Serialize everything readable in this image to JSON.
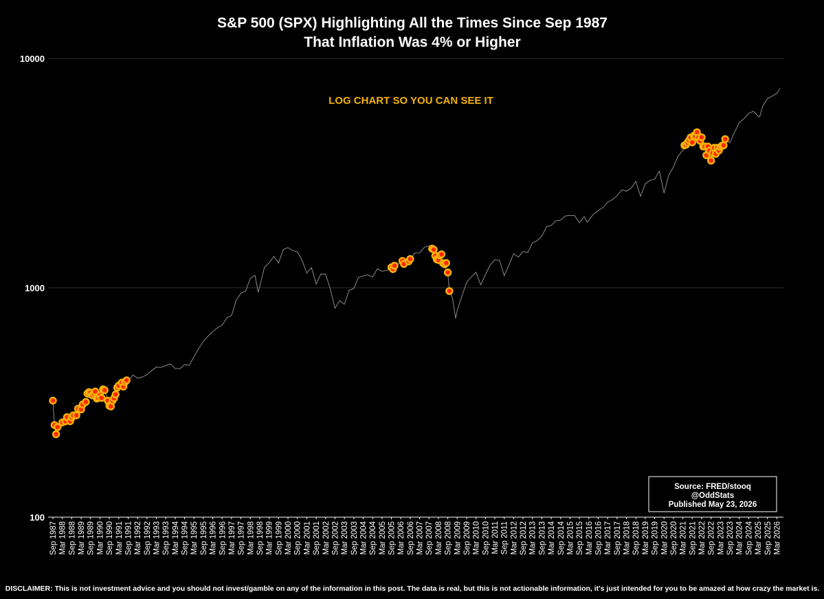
{
  "chart_data": {
    "type": "line",
    "title": "S&P 500 (SPX) Highlighting All the Times Since Sep 1987 That Inflation Was 4% or Higher",
    "title_lines": [
      "S&P 500 (SPX) Highlighting All the Times Since Sep 1987",
      "That Inflation Was 4% or Higher"
    ],
    "annotation": "LOG CHART SO YOU CAN SEE IT",
    "y_scale": "log",
    "ylim": [
      100,
      10000
    ],
    "yticks": [
      {
        "value": 100,
        "label": "100"
      },
      {
        "value": 1000,
        "label": "1000"
      },
      {
        "value": 10000,
        "label": "10000"
      }
    ],
    "grid": "horizontal",
    "xtick_labels": [
      "Sep 1987",
      "Mar 1988",
      "Sep 1988",
      "Mar 1989",
      "Sep 1989",
      "Mar 1990",
      "Sep 1990",
      "Mar 1991",
      "Sep 1991",
      "Mar 1992",
      "Sep 1992",
      "Mar 1993",
      "Sep 1993",
      "Mar 1994",
      "Sep 1994",
      "Mar 1995",
      "Sep 1995",
      "Mar 1996",
      "Sep 1996",
      "Mar 1997",
      "Sep 1997",
      "Mar 1998",
      "Sep 1998",
      "Mar 1999",
      "Sep 1999",
      "Mar 2000",
      "Sep 2000",
      "Mar 2001",
      "Sep 2001",
      "Mar 2002",
      "Sep 2002",
      "Mar 2003",
      "Sep 2003",
      "Mar 2004",
      "Sep 2004",
      "Mar 2005",
      "Sep 2005",
      "Mar 2006",
      "Sep 2006",
      "Mar 2007",
      "Sep 2007",
      "Mar 2008",
      "Sep 2008",
      "Mar 2009",
      "Sep 2009",
      "Mar 2010",
      "Sep 2010",
      "Mar 2011",
      "Sep 2011",
      "Mar 2012",
      "Sep 2012",
      "Mar 2013",
      "Sep 2013",
      "Mar 2014",
      "Sep 2014",
      "Mar 2015",
      "Sep 2015",
      "Mar 2016",
      "Sep 2016",
      "Mar 2017",
      "Sep 2017",
      "Mar 2018",
      "Sep 2018",
      "Mar 2019",
      "Sep 2019",
      "Mar 2020",
      "Sep 2020",
      "Mar 2021",
      "Sep 2021",
      "Mar 2022",
      "Sep 2022",
      "Mar 2023",
      "Sep 2023",
      "Mar 2024",
      "Sep 2024",
      "Mar 2025",
      "Sep 2025",
      "Mar 2026"
    ],
    "x_start": "Sep 1987",
    "x_end": "May 2026",
    "series": [
      {
        "color": "#8a8a8a",
        "points": [
          [
            "1987-09",
            322
          ],
          [
            "1987-10",
            252
          ],
          [
            "1987-11",
            230
          ],
          [
            "1987-12",
            247
          ],
          [
            "1988-03",
            259
          ],
          [
            "1988-06",
            273
          ],
          [
            "1988-09",
            272
          ],
          [
            "1988-12",
            278
          ],
          [
            "1989-03",
            295
          ],
          [
            "1989-06",
            318
          ],
          [
            "1989-09",
            349
          ],
          [
            "1989-12",
            353
          ],
          [
            "1990-03",
            340
          ],
          [
            "1990-06",
            358
          ],
          [
            "1990-09",
            306
          ],
          [
            "1990-12",
            330
          ],
          [
            "1991-03",
            375
          ],
          [
            "1991-06",
            371
          ],
          [
            "1991-09",
            388
          ],
          [
            "1991-12",
            417
          ],
          [
            "1992-03",
            404
          ],
          [
            "1992-06",
            408
          ],
          [
            "1992-09",
            418
          ],
          [
            "1992-12",
            436
          ],
          [
            "1993-03",
            451
          ],
          [
            "1993-06",
            450
          ],
          [
            "1993-09",
            458
          ],
          [
            "1993-12",
            466
          ],
          [
            "1994-03",
            445
          ],
          [
            "1994-06",
            444
          ],
          [
            "1994-09",
            462
          ],
          [
            "1994-12",
            459
          ],
          [
            "1995-03",
            500
          ],
          [
            "1995-06",
            544
          ],
          [
            "1995-09",
            584
          ],
          [
            "1995-12",
            615
          ],
          [
            "1996-03",
            645
          ],
          [
            "1996-06",
            670
          ],
          [
            "1996-09",
            687
          ],
          [
            "1996-12",
            740
          ],
          [
            "1997-03",
            757
          ],
          [
            "1997-06",
            885
          ],
          [
            "1997-09",
            947
          ],
          [
            "1997-12",
            970
          ],
          [
            "1998-03",
            1101
          ],
          [
            "1998-06",
            1133
          ],
          [
            "1998-08",
            957
          ],
          [
            "1998-09",
            1017
          ],
          [
            "1998-12",
            1229
          ],
          [
            "1999-03",
            1286
          ],
          [
            "1999-06",
            1372
          ],
          [
            "1999-09",
            1282
          ],
          [
            "1999-12",
            1469
          ],
          [
            "2000-03",
            1498
          ],
          [
            "2000-06",
            1454
          ],
          [
            "2000-09",
            1436
          ],
          [
            "2000-12",
            1320
          ],
          [
            "2001-03",
            1160
          ],
          [
            "2001-06",
            1224
          ],
          [
            "2001-09",
            1040
          ],
          [
            "2001-12",
            1148
          ],
          [
            "2002-03",
            1147
          ],
          [
            "2002-06",
            989
          ],
          [
            "2002-09",
            815
          ],
          [
            "2002-12",
            879
          ],
          [
            "2003-03",
            848
          ],
          [
            "2003-06",
            974
          ],
          [
            "2003-09",
            995
          ],
          [
            "2003-12",
            1111
          ],
          [
            "2004-03",
            1126
          ],
          [
            "2004-06",
            1140
          ],
          [
            "2004-09",
            1114
          ],
          [
            "2004-12",
            1211
          ],
          [
            "2005-03",
            1180
          ],
          [
            "2005-06",
            1191
          ],
          [
            "2005-09",
            1228
          ],
          [
            "2005-12",
            1248
          ],
          [
            "2006-03",
            1294
          ],
          [
            "2006-06",
            1270
          ],
          [
            "2006-09",
            1335
          ],
          [
            "2006-12",
            1418
          ],
          [
            "2007-03",
            1420
          ],
          [
            "2007-06",
            1503
          ],
          [
            "2007-09",
            1526
          ],
          [
            "2007-12",
            1468
          ],
          [
            "2008-03",
            1322
          ],
          [
            "2008-06",
            1280
          ],
          [
            "2008-09",
            1166
          ],
          [
            "2008-10",
            968
          ],
          [
            "2008-12",
            903
          ],
          [
            "2009-02",
            735
          ],
          [
            "2009-03",
            797
          ],
          [
            "2009-06",
            919
          ],
          [
            "2009-09",
            1057
          ],
          [
            "2009-12",
            1115
          ],
          [
            "2010-03",
            1169
          ],
          [
            "2010-06",
            1030
          ],
          [
            "2010-09",
            1141
          ],
          [
            "2010-12",
            1257
          ],
          [
            "2011-03",
            1325
          ],
          [
            "2011-06",
            1320
          ],
          [
            "2011-09",
            1131
          ],
          [
            "2011-12",
            1257
          ],
          [
            "2012-03",
            1408
          ],
          [
            "2012-06",
            1362
          ],
          [
            "2012-09",
            1440
          ],
          [
            "2012-12",
            1426
          ],
          [
            "2013-03",
            1569
          ],
          [
            "2013-06",
            1606
          ],
          [
            "2013-09",
            1681
          ],
          [
            "2013-12",
            1848
          ],
          [
            "2014-03",
            1872
          ],
          [
            "2014-06",
            1960
          ],
          [
            "2014-09",
            1972
          ],
          [
            "2014-12",
            2058
          ],
          [
            "2015-03",
            2067
          ],
          [
            "2015-06",
            2063
          ],
          [
            "2015-09",
            1920
          ],
          [
            "2015-12",
            2044
          ],
          [
            "2016-02",
            1932
          ],
          [
            "2016-06",
            2099
          ],
          [
            "2016-09",
            2168
          ],
          [
            "2016-12",
            2238
          ],
          [
            "2017-03",
            2362
          ],
          [
            "2017-06",
            2423
          ],
          [
            "2017-09",
            2519
          ],
          [
            "2017-12",
            2673
          ],
          [
            "2018-03",
            2640
          ],
          [
            "2018-06",
            2718
          ],
          [
            "2018-09",
            2913
          ],
          [
            "2018-12",
            2507
          ],
          [
            "2019-03",
            2834
          ],
          [
            "2019-06",
            2941
          ],
          [
            "2019-09",
            2976
          ],
          [
            "2019-12",
            3230
          ],
          [
            "2020-03",
            2585
          ],
          [
            "2020-06",
            3100
          ],
          [
            "2020-09",
            3363
          ],
          [
            "2020-12",
            3756
          ],
          [
            "2021-03",
            3972
          ],
          [
            "2021-06",
            4297
          ],
          [
            "2021-09",
            4307
          ],
          [
            "2021-12",
            4766
          ],
          [
            "2022-03",
            4530
          ],
          [
            "2022-06",
            3785
          ],
          [
            "2022-09",
            3585
          ],
          [
            "2022-12",
            3839
          ],
          [
            "2023-03",
            4109
          ],
          [
            "2023-06",
            4450
          ],
          [
            "2023-09",
            4288
          ],
          [
            "2023-12",
            4769
          ],
          [
            "2024-03",
            5254
          ],
          [
            "2024-06",
            5460
          ],
          [
            "2024-09",
            5762
          ],
          [
            "2024-12",
            5881
          ],
          [
            "2025-03",
            5611
          ],
          [
            "2025-04",
            5569
          ],
          [
            "2025-06",
            6205
          ],
          [
            "2025-09",
            6688
          ],
          [
            "2025-12",
            6850
          ],
          [
            "2026-03",
            7050
          ],
          [
            "2026-05",
            7400
          ]
        ]
      }
    ],
    "highlight_color": "#f4b30a",
    "highlight_fill": "#ff2a00",
    "highlighted_points": [
      [
        "1987-09",
        322
      ],
      [
        "1987-10",
        252
      ],
      [
        "1987-11",
        230
      ],
      [
        "1987-12",
        247
      ],
      [
        "1988-03",
        259
      ],
      [
        "1988-05",
        262
      ],
      [
        "1988-06",
        273
      ],
      [
        "1988-08",
        262
      ],
      [
        "1988-09",
        272
      ],
      [
        "1988-10",
        278
      ],
      [
        "1988-12",
        278
      ],
      [
        "1989-01",
        297
      ],
      [
        "1989-03",
        295
      ],
      [
        "1989-04",
        310
      ],
      [
        "1989-06",
        318
      ],
      [
        "1989-07",
        346
      ],
      [
        "1989-08",
        351
      ],
      [
        "1989-09",
        349
      ],
      [
        "1989-10",
        340
      ],
      [
        "1989-11",
        346
      ],
      [
        "1989-12",
        353
      ],
      [
        "1990-01",
        329
      ],
      [
        "1990-02",
        331
      ],
      [
        "1990-03",
        340
      ],
      [
        "1990-04",
        331
      ],
      [
        "1990-05",
        361
      ],
      [
        "1990-06",
        358
      ],
      [
        "1990-08",
        322
      ],
      [
        "1990-09",
        306
      ],
      [
        "1990-10",
        304
      ],
      [
        "1990-11",
        322
      ],
      [
        "1990-12",
        330
      ],
      [
        "1991-01",
        343
      ],
      [
        "1991-02",
        367
      ],
      [
        "1991-03",
        375
      ],
      [
        "1991-05",
        386
      ],
      [
        "1991-06",
        371
      ],
      [
        "1991-07",
        388
      ],
      [
        "1991-08",
        395
      ],
      [
        "2005-09",
        1228
      ],
      [
        "2005-10",
        1207
      ],
      [
        "2005-11",
        1249
      ],
      [
        "2006-04",
        1310
      ],
      [
        "2006-05",
        1270
      ],
      [
        "2006-08",
        1304
      ],
      [
        "2006-09",
        1335
      ],
      [
        "2007-11",
        1481
      ],
      [
        "2007-12",
        1468
      ],
      [
        "2008-01",
        1378
      ],
      [
        "2008-02",
        1330
      ],
      [
        "2008-03",
        1322
      ],
      [
        "2008-04",
        1385
      ],
      [
        "2008-05",
        1400
      ],
      [
        "2008-06",
        1280
      ],
      [
        "2008-07",
        1267
      ],
      [
        "2008-08",
        1283
      ],
      [
        "2008-09",
        1166
      ],
      [
        "2008-10",
        968
      ],
      [
        "2021-04",
        4181
      ],
      [
        "2021-05",
        4204
      ],
      [
        "2021-06",
        4297
      ],
      [
        "2021-07",
        4395
      ],
      [
        "2021-08",
        4523
      ],
      [
        "2021-09",
        4307
      ],
      [
        "2021-10",
        4605
      ],
      [
        "2021-11",
        4567
      ],
      [
        "2021-12",
        4766
      ],
      [
        "2022-01",
        4516
      ],
      [
        "2022-02",
        4374
      ],
      [
        "2022-03",
        4530
      ],
      [
        "2022-04",
        4132
      ],
      [
        "2022-05",
        4132
      ],
      [
        "2022-06",
        3785
      ],
      [
        "2022-07",
        4130
      ],
      [
        "2022-08",
        3955
      ],
      [
        "2022-09",
        3585
      ],
      [
        "2022-10",
        3872
      ],
      [
        "2022-11",
        4080
      ],
      [
        "2022-12",
        3839
      ],
      [
        "2023-01",
        4077
      ],
      [
        "2023-02",
        3970
      ],
      [
        "2023-03",
        4109
      ],
      [
        "2023-04",
        4169
      ],
      [
        "2023-05",
        4180
      ],
      [
        "2023-06",
        4450
      ]
    ]
  },
  "source_box": {
    "line1": "Source: FRED/stooq",
    "line2": "@OddStats",
    "line3": "Published May 23, 2026"
  },
  "disclaimer": "DISCLAIMER: This is not investment advice and you should not invest/gamble on any of the information in this post.   The data is real, but this is not actionable information, it's just intended for you to be amazed at how crazy the market is."
}
